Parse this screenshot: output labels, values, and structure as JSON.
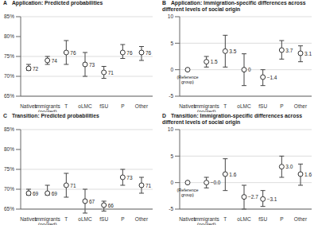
{
  "chart_data": [
    {
      "type": "scatter",
      "panel": "A",
      "title": "Application: Predicted probabilities",
      "categories": [
        "Natives",
        "Immigrants (pooled)",
        "T",
        "oLMC",
        "fSU",
        "P",
        "Other"
      ],
      "values": [
        72,
        74,
        76,
        73,
        71,
        76,
        76
      ],
      "ci_low": [
        71.5,
        73,
        73,
        70,
        69.5,
        74.5,
        74
      ],
      "ci_high": [
        73,
        75,
        79,
        76,
        72.5,
        78,
        77.5
      ],
      "ylim": [
        65,
        85
      ],
      "yticks": [
        {
          "value": 65,
          "label": "65%"
        },
        {
          "value": 70,
          "label": "70%"
        },
        {
          "value": 75,
          "label": "75%"
        },
        {
          "value": 80,
          "label": "80%"
        },
        {
          "value": 85,
          "label": "85%"
        }
      ],
      "grid": true,
      "marker": "circle",
      "data_labels": true
    },
    {
      "type": "scatter",
      "panel": "B",
      "title": "Application: Immigration-specific differences across different levels of social origin",
      "categories": [
        "Natives",
        "Immigrants (pooled)",
        "T",
        "oLMC",
        "fSU",
        "P",
        "Other"
      ],
      "values": [
        0,
        1.5,
        3.5,
        0,
        -1.4,
        3.7,
        3.1
      ],
      "value_labels": [
        null,
        "1.5",
        "3.5",
        "0",
        "−1.4",
        "3.7",
        "3.1"
      ],
      "ci_low": [
        null,
        0.5,
        0.5,
        -3,
        -3,
        2,
        1.5
      ],
      "ci_high": [
        null,
        2.5,
        6.5,
        3,
        0,
        5.5,
        4.5
      ],
      "annotation": {
        "text": "(Reference group)",
        "category": "Natives"
      },
      "ylim": [
        -5,
        10
      ],
      "yticks": [
        -5,
        0,
        5,
        10
      ],
      "grid": true,
      "marker": "circle",
      "data_labels": true
    },
    {
      "type": "scatter",
      "panel": "C",
      "title": "Transition: Predicted probabilities",
      "categories": [
        "Natives",
        "Immigrants (pooled)",
        "T",
        "oLMC",
        "fSU",
        "P",
        "Other"
      ],
      "values": [
        69,
        69,
        71,
        67,
        66,
        73,
        71
      ],
      "ci_low": [
        68.5,
        68.5,
        68,
        64,
        64.5,
        71,
        69
      ],
      "ci_high": [
        70,
        71,
        74,
        70,
        67,
        75,
        73
      ],
      "ylim": [
        65,
        85
      ],
      "yticks": [
        {
          "value": 65,
          "label": "65%"
        },
        {
          "value": 70,
          "label": "70%"
        },
        {
          "value": 75,
          "label": "75%"
        },
        {
          "value": 80,
          "label": "80%"
        },
        {
          "value": 85,
          "label": "85%"
        }
      ],
      "grid": true,
      "marker": "circle",
      "data_labels": true
    },
    {
      "type": "scatter",
      "panel": "D",
      "title": "Transition: Immigration-specific differences across different levels of social origin",
      "categories": [
        "Natives",
        "Immigrants (pooled)",
        "T",
        "oLMC",
        "fSU",
        "P",
        "Other"
      ],
      "values": [
        0,
        0,
        1.6,
        -2.7,
        -3.1,
        3.0,
        1.6
      ],
      "value_labels": [
        null,
        "−0.0",
        "1.6",
        "−2.7",
        "−3.1",
        "3.0",
        "1.6"
      ],
      "ci_low": [
        null,
        -1,
        -1.5,
        -5,
        -4.5,
        1,
        -0.5
      ],
      "ci_high": [
        null,
        1,
        4.5,
        -0.5,
        -1.5,
        5,
        3.5
      ],
      "annotation": {
        "text": "(Reference group)",
        "category": "Natives"
      },
      "ylim": [
        -5,
        10
      ],
      "yticks": [
        -5,
        0,
        5,
        10
      ],
      "grid": true,
      "marker": "circle",
      "data_labels": true
    }
  ]
}
